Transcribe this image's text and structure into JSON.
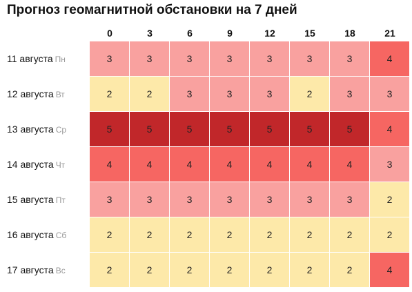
{
  "title": "Прогноз геомагнитной обстановки на 7 дней",
  "colors": {
    "2": "#fde9a9",
    "3": "#f9a19f",
    "4": "#f66662",
    "5": "#c1272a"
  },
  "chart_data": {
    "type": "heatmap",
    "title": "Прогноз геомагнитной обстановки на 7 дней",
    "x": [
      "0",
      "3",
      "6",
      "9",
      "12",
      "15",
      "18",
      "21"
    ],
    "y": [
      {
        "date": "11 августа",
        "dow": "Пн"
      },
      {
        "date": "12 августа",
        "dow": "Вт"
      },
      {
        "date": "13 августа",
        "dow": "Ср"
      },
      {
        "date": "14 августа",
        "dow": "Чт"
      },
      {
        "date": "15 августа",
        "dow": "Пт"
      },
      {
        "date": "16 августа",
        "dow": "Сб"
      },
      {
        "date": "17 августа",
        "dow": "Вс"
      }
    ],
    "values": [
      [
        3,
        3,
        3,
        3,
        3,
        3,
        3,
        4
      ],
      [
        2,
        2,
        3,
        3,
        3,
        2,
        3,
        3
      ],
      [
        5,
        5,
        5,
        5,
        5,
        5,
        5,
        4
      ],
      [
        4,
        4,
        4,
        4,
        4,
        4,
        4,
        3
      ],
      [
        3,
        3,
        3,
        3,
        3,
        3,
        3,
        2
      ],
      [
        2,
        2,
        2,
        2,
        2,
        2,
        2,
        2
      ],
      [
        2,
        2,
        2,
        2,
        2,
        2,
        2,
        4
      ]
    ]
  }
}
